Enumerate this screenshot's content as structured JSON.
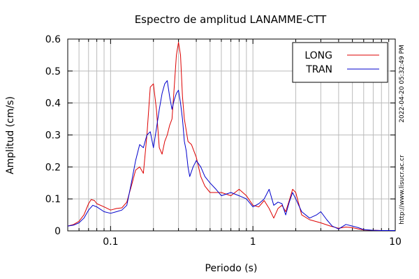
{
  "chart_data": {
    "type": "line",
    "title": "Espectro de amplitud LANAMME-CTT",
    "xlabel": "Periodo (s)",
    "ylabel": "Amplitud (cm/s)",
    "xscale": "log",
    "xlim": [
      0.05,
      10
    ],
    "ylim": [
      0,
      0.6
    ],
    "x_tick_labels": [
      "0.1",
      "1",
      "10"
    ],
    "y_tick_labels": [
      "0",
      "0.1",
      "0.2",
      "0.3",
      "0.4",
      "0.5",
      "0.6"
    ],
    "grid": true,
    "legend_position": "top-right",
    "side_annotations": [
      "http://www.lisucr.ac.cr",
      "2022-04-20 05:32:49 PM"
    ],
    "series": [
      {
        "name": "LONG",
        "color": "#dd0000",
        "points": [
          [
            0.05,
            0.015
          ],
          [
            0.055,
            0.02
          ],
          [
            0.06,
            0.03
          ],
          [
            0.065,
            0.05
          ],
          [
            0.07,
            0.085
          ],
          [
            0.073,
            0.098
          ],
          [
            0.077,
            0.095
          ],
          [
            0.08,
            0.085
          ],
          [
            0.09,
            0.075
          ],
          [
            0.1,
            0.065
          ],
          [
            0.11,
            0.07
          ],
          [
            0.12,
            0.072
          ],
          [
            0.13,
            0.09
          ],
          [
            0.14,
            0.14
          ],
          [
            0.15,
            0.19
          ],
          [
            0.16,
            0.2
          ],
          [
            0.17,
            0.18
          ],
          [
            0.18,
            0.3
          ],
          [
            0.19,
            0.45
          ],
          [
            0.2,
            0.46
          ],
          [
            0.21,
            0.38
          ],
          [
            0.22,
            0.26
          ],
          [
            0.23,
            0.24
          ],
          [
            0.24,
            0.28
          ],
          [
            0.25,
            0.3
          ],
          [
            0.26,
            0.33
          ],
          [
            0.27,
            0.35
          ],
          [
            0.28,
            0.45
          ],
          [
            0.29,
            0.55
          ],
          [
            0.3,
            0.59
          ],
          [
            0.31,
            0.55
          ],
          [
            0.32,
            0.42
          ],
          [
            0.33,
            0.35
          ],
          [
            0.35,
            0.28
          ],
          [
            0.37,
            0.27
          ],
          [
            0.4,
            0.23
          ],
          [
            0.43,
            0.17
          ],
          [
            0.46,
            0.14
          ],
          [
            0.5,
            0.12
          ],
          [
            0.6,
            0.12
          ],
          [
            0.7,
            0.11
          ],
          [
            0.8,
            0.13
          ],
          [
            0.9,
            0.11
          ],
          [
            1.0,
            0.08
          ],
          [
            1.1,
            0.075
          ],
          [
            1.2,
            0.095
          ],
          [
            1.3,
            0.07
          ],
          [
            1.4,
            0.04
          ],
          [
            1.5,
            0.07
          ],
          [
            1.6,
            0.08
          ],
          [
            1.7,
            0.06
          ],
          [
            1.8,
            0.095
          ],
          [
            1.9,
            0.13
          ],
          [
            2.0,
            0.12
          ],
          [
            2.2,
            0.05
          ],
          [
            2.5,
            0.035
          ],
          [
            3.0,
            0.025
          ],
          [
            3.5,
            0.015
          ],
          [
            4.0,
            0.008
          ],
          [
            4.5,
            0.012
          ],
          [
            5.0,
            0.01
          ],
          [
            5.5,
            0.006
          ],
          [
            6.0,
            0.003
          ],
          [
            7.0,
            0.002
          ],
          [
            8.0,
            0.001
          ],
          [
            10.0,
            0.001
          ]
        ]
      },
      {
        "name": "TRAN",
        "color": "#0000cc",
        "points": [
          [
            0.05,
            0.015
          ],
          [
            0.055,
            0.018
          ],
          [
            0.06,
            0.025
          ],
          [
            0.065,
            0.04
          ],
          [
            0.07,
            0.065
          ],
          [
            0.075,
            0.08
          ],
          [
            0.08,
            0.075
          ],
          [
            0.09,
            0.06
          ],
          [
            0.1,
            0.055
          ],
          [
            0.11,
            0.06
          ],
          [
            0.12,
            0.065
          ],
          [
            0.13,
            0.08
          ],
          [
            0.14,
            0.15
          ],
          [
            0.15,
            0.22
          ],
          [
            0.16,
            0.27
          ],
          [
            0.17,
            0.26
          ],
          [
            0.18,
            0.3
          ],
          [
            0.19,
            0.31
          ],
          [
            0.2,
            0.26
          ],
          [
            0.21,
            0.32
          ],
          [
            0.22,
            0.38
          ],
          [
            0.23,
            0.43
          ],
          [
            0.24,
            0.46
          ],
          [
            0.25,
            0.47
          ],
          [
            0.26,
            0.42
          ],
          [
            0.27,
            0.38
          ],
          [
            0.28,
            0.41
          ],
          [
            0.29,
            0.43
          ],
          [
            0.3,
            0.44
          ],
          [
            0.31,
            0.4
          ],
          [
            0.32,
            0.35
          ],
          [
            0.33,
            0.28
          ],
          [
            0.34,
            0.25
          ],
          [
            0.35,
            0.2
          ],
          [
            0.36,
            0.17
          ],
          [
            0.38,
            0.2
          ],
          [
            0.4,
            0.22
          ],
          [
            0.43,
            0.2
          ],
          [
            0.46,
            0.17
          ],
          [
            0.5,
            0.15
          ],
          [
            0.55,
            0.13
          ],
          [
            0.6,
            0.11
          ],
          [
            0.7,
            0.12
          ],
          [
            0.8,
            0.11
          ],
          [
            0.9,
            0.1
          ],
          [
            1.0,
            0.075
          ],
          [
            1.1,
            0.085
          ],
          [
            1.2,
            0.1
          ],
          [
            1.3,
            0.13
          ],
          [
            1.4,
            0.08
          ],
          [
            1.5,
            0.09
          ],
          [
            1.6,
            0.085
          ],
          [
            1.7,
            0.05
          ],
          [
            1.8,
            0.09
          ],
          [
            1.9,
            0.12
          ],
          [
            2.0,
            0.1
          ],
          [
            2.2,
            0.06
          ],
          [
            2.5,
            0.04
          ],
          [
            2.8,
            0.05
          ],
          [
            3.0,
            0.06
          ],
          [
            3.3,
            0.035
          ],
          [
            3.6,
            0.015
          ],
          [
            4.0,
            0.006
          ],
          [
            4.5,
            0.02
          ],
          [
            5.0,
            0.015
          ],
          [
            5.5,
            0.01
          ],
          [
            6.0,
            0.004
          ],
          [
            7.0,
            0.002
          ],
          [
            8.0,
            0.001
          ],
          [
            10.0,
            0.001
          ]
        ]
      }
    ]
  }
}
